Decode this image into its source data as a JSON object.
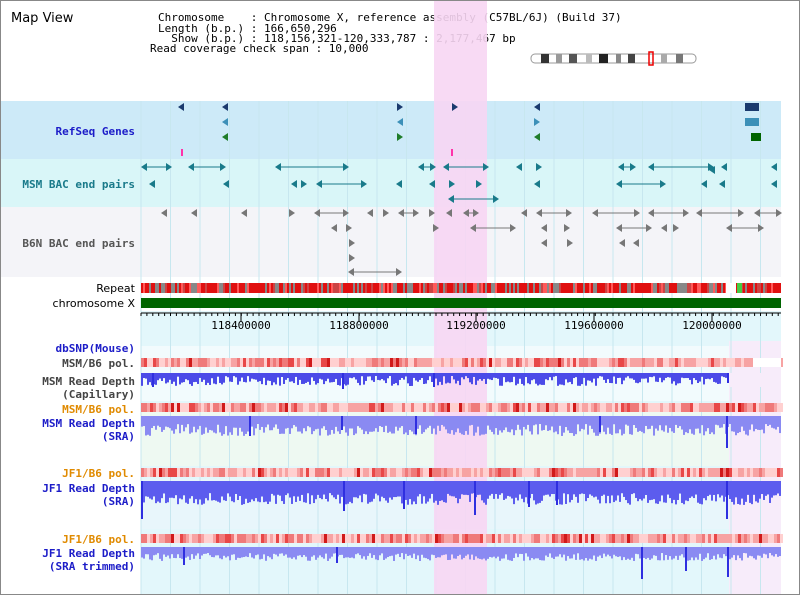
{
  "header": {
    "title": "Map View",
    "info_lines": [
      "Chromosome    : Chromosome X, reference assembly (C57BL/6J) (Build 37)",
      "Length (b.p.) : 166,650,296",
      "  Show (b.p.) : 118,156,321-120,333,787 : 2,177,467 bp",
      "Read coverage check span : 10,000"
    ]
  },
  "tracks": {
    "refseq": "RefSeq Genes",
    "msm_bac": "MSM BAC end pairs",
    "b6n_bac": "B6N BAC end pairs",
    "repeat": "Repeat",
    "chromosome": "chromosome X",
    "dbsnp": "dbSNP(Mouse)",
    "msm_b6_pol_1": "MSM/B6 pol.",
    "msm_depth_cap": "MSM Read Depth\n(Capillary)",
    "msm_b6_pol_2": "MSM/B6 pol.",
    "msm_depth_sra": "MSM Read Depth\n(SRA)",
    "jf1_b6_pol_1": "JF1/B6 pol.",
    "jf1_depth_sra": "JF1 Read Depth\n(SRA)",
    "jf1_b6_pol_2": "JF1/B6 pol.",
    "jf1_depth_trim": "JF1 Read Depth\n(SRA trimmed)"
  },
  "axis": {
    "ticks": [
      "118400000",
      "118800000",
      "119200000",
      "119600000",
      "120000000"
    ]
  },
  "colors": {
    "highlight": "#f7d6f3",
    "refseq_band": "#cdeaf8",
    "msm_band": "#d9f6f8",
    "b6n_band": "#f4f4f8",
    "chromosome": "#006400",
    "depth_blue": "#2f2fe0",
    "depth_light": "#8c8cf0"
  }
}
